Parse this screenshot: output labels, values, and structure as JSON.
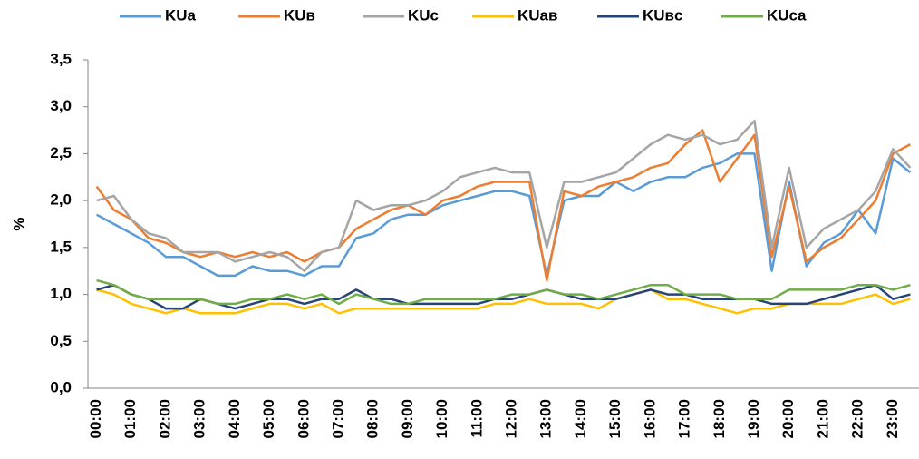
{
  "chart_data": {
    "type": "line",
    "y_label": "%",
    "categories": [
      "00:00",
      null,
      "01:00",
      null,
      "02:00",
      null,
      "03:00",
      null,
      "04:00",
      null,
      "05:00",
      null,
      "06:00",
      null,
      "07:00",
      null,
      "08:00",
      null,
      "09:00",
      null,
      "10:00",
      null,
      "11:00",
      null,
      "12:00",
      null,
      "13:00",
      null,
      "14:00",
      null,
      "15:00",
      null,
      "16:00",
      null,
      "17:00",
      null,
      "18:00",
      null,
      "19:00",
      null,
      "20:00",
      null,
      "21:00",
      null,
      "22:00",
      null,
      "23:00",
      null
    ],
    "ylim": [
      0,
      3.5
    ],
    "yticks": [
      {
        "value": 0,
        "label": "0,0"
      },
      {
        "value": 0.5,
        "label": "0,5"
      },
      {
        "value": 1,
        "label": "1,0"
      },
      {
        "value": 1.5,
        "label": "1,5"
      },
      {
        "value": 2,
        "label": "2,0"
      },
      {
        "value": 2.5,
        "label": "2,5"
      },
      {
        "value": 3,
        "label": "3,0"
      },
      {
        "value": 3.5,
        "label": "3,5"
      }
    ],
    "grid": false,
    "legend": "top",
    "series": [
      {
        "name": "KUa",
        "color": "#5b9bd5",
        "values": [
          1.85,
          1.75,
          1.65,
          1.55,
          1.4,
          1.4,
          1.3,
          1.2,
          1.2,
          1.3,
          1.25,
          1.25,
          1.2,
          1.3,
          1.3,
          1.6,
          1.65,
          1.8,
          1.85,
          1.85,
          1.95,
          2.0,
          2.05,
          2.1,
          2.1,
          2.05,
          1.2,
          2.0,
          2.05,
          2.05,
          2.2,
          2.1,
          2.2,
          2.25,
          2.25,
          2.35,
          2.4,
          2.5,
          2.5,
          1.25,
          2.2,
          1.3,
          1.55,
          1.65,
          1.9,
          1.65,
          2.45,
          2.3
        ]
      },
      {
        "name": "KUв",
        "color": "#ed7d31",
        "values": [
          2.15,
          1.9,
          1.8,
          1.6,
          1.55,
          1.45,
          1.4,
          1.45,
          1.4,
          1.45,
          1.4,
          1.45,
          1.35,
          1.45,
          1.5,
          1.7,
          1.8,
          1.9,
          1.95,
          1.85,
          2.0,
          2.05,
          2.15,
          2.2,
          2.2,
          2.2,
          1.15,
          2.1,
          2.05,
          2.15,
          2.2,
          2.25,
          2.35,
          2.4,
          2.6,
          2.75,
          2.2,
          2.45,
          2.7,
          1.4,
          2.15,
          1.35,
          1.5,
          1.6,
          1.8,
          2.0,
          2.5,
          2.6
        ]
      },
      {
        "name": "KUc",
        "color": "#a5a5a5",
        "values": [
          2.0,
          2.05,
          1.8,
          1.65,
          1.6,
          1.45,
          1.45,
          1.45,
          1.35,
          1.4,
          1.45,
          1.4,
          1.25,
          1.45,
          1.5,
          2.0,
          1.9,
          1.95,
          1.95,
          2.0,
          2.1,
          2.25,
          2.3,
          2.35,
          2.3,
          2.3,
          1.5,
          2.2,
          2.2,
          2.25,
          2.3,
          2.45,
          2.6,
          2.7,
          2.65,
          2.7,
          2.6,
          2.65,
          2.85,
          1.5,
          2.35,
          1.5,
          1.7,
          1.8,
          1.9,
          2.1,
          2.55,
          2.35
        ]
      },
      {
        "name": "KUaв",
        "color": "#ffc000",
        "values": [
          1.05,
          1.0,
          0.9,
          0.85,
          0.8,
          0.85,
          0.8,
          0.8,
          0.8,
          0.85,
          0.9,
          0.9,
          0.85,
          0.9,
          0.8,
          0.85,
          0.85,
          0.85,
          0.85,
          0.85,
          0.85,
          0.85,
          0.85,
          0.9,
          0.9,
          0.95,
          0.9,
          0.9,
          0.9,
          0.85,
          0.95,
          1.0,
          1.05,
          0.95,
          0.95,
          0.9,
          0.85,
          0.8,
          0.85,
          0.85,
          0.9,
          0.9,
          0.9,
          0.9,
          0.95,
          1.0,
          0.9,
          0.95
        ]
      },
      {
        "name": "KUвc",
        "color": "#264478",
        "values": [
          1.05,
          1.1,
          1.0,
          0.95,
          0.85,
          0.85,
          0.95,
          0.9,
          0.85,
          0.9,
          0.95,
          0.95,
          0.9,
          0.95,
          0.95,
          1.05,
          0.95,
          0.95,
          0.9,
          0.9,
          0.9,
          0.9,
          0.9,
          0.95,
          0.95,
          1.0,
          1.05,
          1.0,
          0.95,
          0.95,
          0.95,
          1.0,
          1.05,
          1.0,
          1.0,
          0.95,
          0.95,
          0.95,
          0.95,
          0.9,
          0.9,
          0.9,
          0.95,
          1.0,
          1.05,
          1.1,
          0.95,
          1.0
        ]
      },
      {
        "name": "KUca",
        "color": "#70ad47",
        "values": [
          1.15,
          1.1,
          1.0,
          0.95,
          0.95,
          0.95,
          0.95,
          0.9,
          0.9,
          0.95,
          0.95,
          1.0,
          0.95,
          1.0,
          0.9,
          1.0,
          0.95,
          0.9,
          0.9,
          0.95,
          0.95,
          0.95,
          0.95,
          0.95,
          1.0,
          1.0,
          1.05,
          1.0,
          1.0,
          0.95,
          1.0,
          1.05,
          1.1,
          1.1,
          1.0,
          1.0,
          1.0,
          0.95,
          0.95,
          0.95,
          1.05,
          1.05,
          1.05,
          1.05,
          1.1,
          1.1,
          1.05,
          1.1
        ]
      }
    ]
  }
}
